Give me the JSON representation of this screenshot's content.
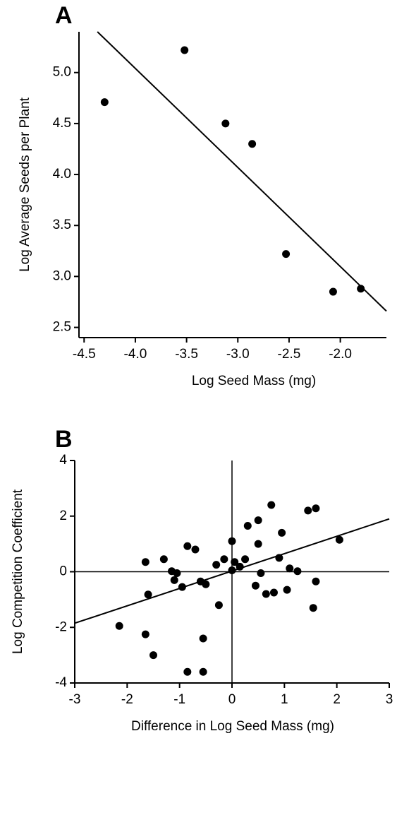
{
  "chart_data": [
    {
      "type": "scatter",
      "panel": "A",
      "xlabel": "Log Seed Mass (mg)",
      "ylabel": "Log Average Seeds per Plant",
      "x": [
        -4.3,
        -3.52,
        -3.12,
        -2.86,
        -2.53,
        -2.07,
        -1.8
      ],
      "values": [
        4.71,
        5.22,
        4.5,
        4.3,
        3.22,
        2.85,
        2.88
      ],
      "color": "#000000",
      "fit_line": {
        "x": [
          -4.37,
          -1.55
        ],
        "values": [
          5.4,
          2.66
        ]
      },
      "xlim": [
        -4.55,
        -1.55
      ],
      "ylim": [
        2.4,
        5.4
      ],
      "xticks": [
        -4.5,
        {
          "value": -4,
          "label": "-4.0"
        },
        -3.5,
        {
          "value": -3,
          "label": "-3.0"
        },
        -2.5,
        {
          "value": -2,
          "label": "-2.0"
        }
      ],
      "yticks": [
        2.5,
        {
          "value": 3,
          "label": "3.0"
        },
        3.5,
        {
          "value": 4,
          "label": "4.0"
        },
        4.5,
        {
          "value": 5,
          "label": "5.0"
        }
      ],
      "zero_lines": false
    },
    {
      "type": "scatter",
      "panel": "B",
      "xlabel": "Difference in Log Seed Mass (mg)",
      "ylabel": "Log Competition Coefficient",
      "x": [
        -2.15,
        -1.65,
        -1.5,
        -1.65,
        -1.6,
        -1.3,
        -1.15,
        -1.1,
        -1.05,
        -0.95,
        -0.85,
        -0.7,
        -0.6,
        -0.5,
        -0.55,
        -0.85,
        -0.55,
        -0.3,
        -0.25,
        -0.15,
        0,
        0.05,
        0.15,
        0,
        0.3,
        0.5,
        0.25,
        0.5,
        0.45,
        0.55,
        0.65,
        0.75,
        0.8,
        0.9,
        0.95,
        1.05,
        1.1,
        1.25,
        1.45,
        1.6,
        1.55,
        1.6,
        2.05
      ],
      "values": [
        -1.95,
        -2.25,
        -3.0,
        0.35,
        -0.82,
        0.45,
        0.02,
        -0.3,
        -0.05,
        -0.55,
        0.92,
        0.8,
        -0.35,
        -0.45,
        -2.4,
        -3.6,
        -3.6,
        0.25,
        -1.2,
        0.45,
        1.1,
        0.35,
        0.18,
        0.05,
        1.65,
        1.85,
        0.45,
        1.0,
        -0.5,
        -0.05,
        -0.8,
        2.4,
        -0.75,
        0.5,
        1.4,
        -0.65,
        0.12,
        0.02,
        2.2,
        2.28,
        -1.3,
        -0.35,
        1.15
      ],
      "color": "#000000",
      "fit_line": {
        "x": [
          -3,
          3
        ],
        "values": [
          -1.85,
          1.9
        ]
      },
      "xlim": [
        -3,
        3
      ],
      "ylim": [
        -4,
        4
      ],
      "xticks": [
        -3,
        -2,
        -1,
        0,
        1,
        2,
        3
      ],
      "yticks": [
        -4,
        -2,
        0,
        2,
        4
      ],
      "zero_lines": true
    }
  ]
}
